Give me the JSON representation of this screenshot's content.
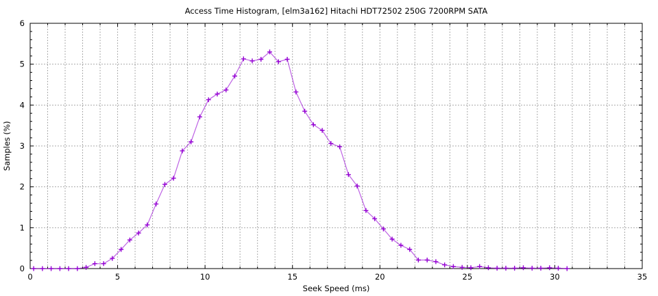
{
  "chart_data": {
    "type": "line",
    "title": "Access Time Histogram, [elm3a162] Hitachi HDT72502 250G 7200RPM SATA",
    "xlabel": "Seek Speed (ms)",
    "ylabel": "Samples (%)",
    "xlim": [
      0,
      35
    ],
    "ylim": [
      0,
      6
    ],
    "x_ticks": [
      0,
      5,
      10,
      15,
      20,
      25,
      30,
      35
    ],
    "y_ticks": [
      0,
      1,
      2,
      3,
      4,
      5,
      6
    ],
    "x_minor_step": 1,
    "y_minor_step": 0.2,
    "grid": "on",
    "grid_style": "dashed",
    "legend": "none",
    "marker": "plus",
    "series": [
      {
        "name": "samples",
        "color": "#9400d3",
        "x": [
          0.2,
          0.7,
          1.2,
          1.7,
          2.2,
          2.7,
          3.2,
          3.7,
          4.2,
          4.7,
          5.2,
          5.7,
          6.2,
          6.7,
          7.2,
          7.7,
          8.2,
          8.7,
          9.2,
          9.7,
          10.2,
          10.7,
          11.2,
          11.7,
          12.2,
          12.7,
          13.2,
          13.7,
          14.2,
          14.7,
          15.2,
          15.7,
          16.2,
          16.7,
          17.2,
          17.7,
          18.2,
          18.7,
          19.2,
          19.7,
          20.2,
          20.7,
          21.2,
          21.7,
          22.2,
          22.7,
          23.2,
          23.7,
          24.2,
          24.7,
          25.2,
          25.7,
          26.2,
          26.7,
          27.2,
          27.7,
          28.2,
          28.7,
          29.2,
          29.7,
          30.2,
          30.7
        ],
        "y": [
          0,
          0,
          0,
          0,
          0,
          0,
          0.03,
          0.12,
          0.12,
          0.25,
          0.47,
          0.7,
          0.87,
          1.07,
          1.58,
          2.06,
          2.21,
          2.88,
          3.1,
          3.71,
          4.13,
          4.27,
          4.37,
          4.71,
          5.13,
          5.08,
          5.12,
          5.3,
          5.06,
          5.12,
          4.32,
          3.85,
          3.52,
          3.38,
          3.06,
          2.98,
          2.3,
          2.02,
          1.42,
          1.22,
          0.97,
          0.72,
          0.57,
          0.47,
          0.21,
          0.21,
          0.17,
          0.09,
          0.05,
          0.03,
          0.02,
          0.05,
          0.02,
          0.01,
          0.01,
          0.01,
          0.02,
          0.01,
          0.01,
          0.02,
          0.01,
          0
        ]
      }
    ]
  },
  "colors": {
    "background": "#ffffff",
    "grid": "#aaaaaa",
    "axis": "#000000",
    "text": "#000000",
    "series": "#9400d3"
  }
}
